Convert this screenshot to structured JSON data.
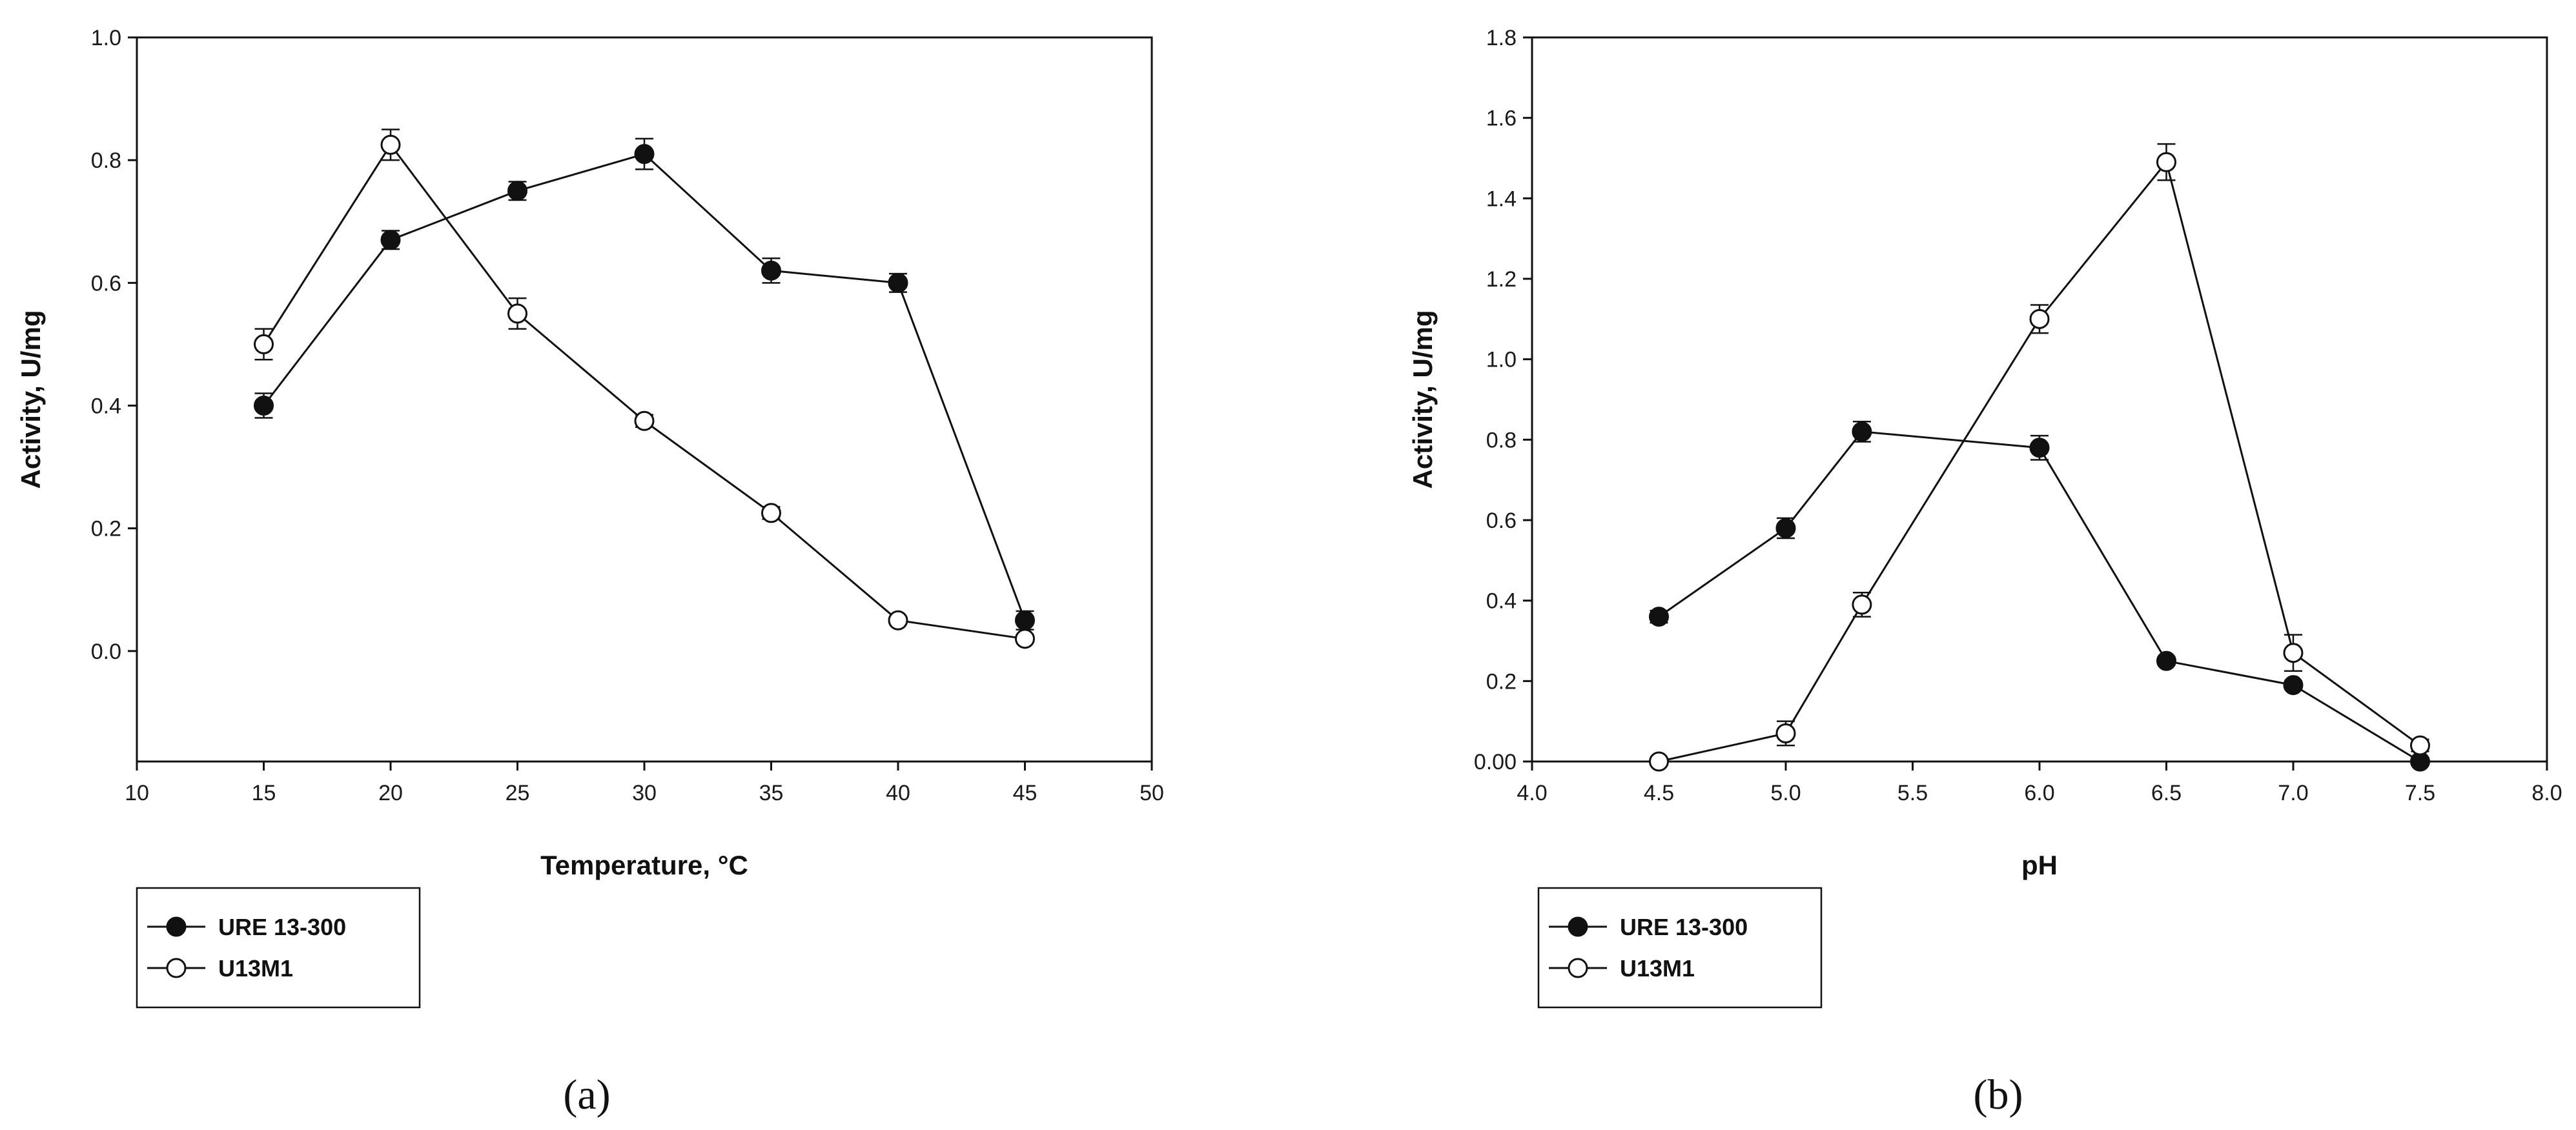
{
  "chart_data": [
    {
      "type": "line",
      "title": "",
      "xlabel": "Temperature, °C",
      "ylabel": "Activity, U/mg",
      "xlim": [
        10,
        50
      ],
      "ylim": [
        -0.18,
        1.0
      ],
      "xticks": [
        10,
        15,
        20,
        25,
        30,
        35,
        40,
        45,
        50
      ],
      "xtick_labels": [
        "10",
        "15",
        "20",
        "25",
        "30",
        "35",
        "40",
        "45",
        "50"
      ],
      "yticks": [
        0.0,
        0.2,
        0.4,
        0.6,
        0.8,
        1.0
      ],
      "ytick_labels": [
        "0.0",
        "0.2",
        "0.4",
        "0.6",
        "0.8",
        "1.0"
      ],
      "grid": false,
      "legend_position": "below-left",
      "caption": "(a)",
      "series": [
        {
          "name": "URE 13-300",
          "marker": "filled-circle",
          "x": [
            15,
            20,
            25,
            30,
            35,
            40,
            45
          ],
          "y": [
            0.4,
            0.67,
            0.75,
            0.81,
            0.62,
            0.6,
            0.05
          ],
          "err": [
            0.02,
            0.015,
            0.015,
            0.025,
            0.02,
            0.015,
            0.015
          ]
        },
        {
          "name": "U13M1",
          "marker": "open-circle",
          "x": [
            15,
            20,
            25,
            30,
            35,
            40,
            45
          ],
          "y": [
            0.5,
            0.825,
            0.55,
            0.375,
            0.225,
            0.05,
            0.02
          ],
          "err": [
            0.025,
            0.025,
            0.025,
            0.01,
            0.01,
            0.005,
            0.005
          ]
        }
      ]
    },
    {
      "type": "line",
      "title": "",
      "xlabel": "pH",
      "ylabel": "Activity, U/mg",
      "xlim": [
        4.0,
        8.0
      ],
      "ylim": [
        0.0,
        1.8
      ],
      "xticks": [
        4.0,
        4.5,
        5.0,
        5.5,
        6.0,
        6.5,
        7.0,
        7.5,
        8.0
      ],
      "xtick_labels": [
        "4.0",
        "4.5",
        "5.0",
        "5.5",
        "6.0",
        "6.5",
        "7.0",
        "7.5",
        "8.0"
      ],
      "yticks": [
        0.0,
        0.2,
        0.4,
        0.6,
        0.8,
        1.0,
        1.2,
        1.4,
        1.6,
        1.8
      ],
      "ytick_labels": [
        "0.00",
        "0.2",
        "0.4",
        "0.6",
        "0.8",
        "1.0",
        "1.2",
        "1.4",
        "1.6",
        "1.8"
      ],
      "grid": false,
      "legend_position": "below-left",
      "caption": "(b)",
      "series": [
        {
          "name": "URE 13-300",
          "marker": "filled-circle",
          "x": [
            4.5,
            5.0,
            5.3,
            6.0,
            6.5,
            7.0,
            7.5
          ],
          "y": [
            0.36,
            0.58,
            0.82,
            0.78,
            0.25,
            0.19,
            0.0
          ],
          "err": [
            0.015,
            0.025,
            0.025,
            0.03,
            0.01,
            0.01,
            0.005
          ]
        },
        {
          "name": "U13M1",
          "marker": "open-circle",
          "x": [
            4.5,
            5.0,
            5.3,
            6.0,
            6.5,
            7.0,
            7.5
          ],
          "y": [
            0.0,
            0.07,
            0.39,
            1.1,
            1.49,
            0.27,
            0.04
          ],
          "err": [
            0.005,
            0.03,
            0.03,
            0.035,
            0.045,
            0.045,
            0.015
          ]
        }
      ]
    }
  ]
}
